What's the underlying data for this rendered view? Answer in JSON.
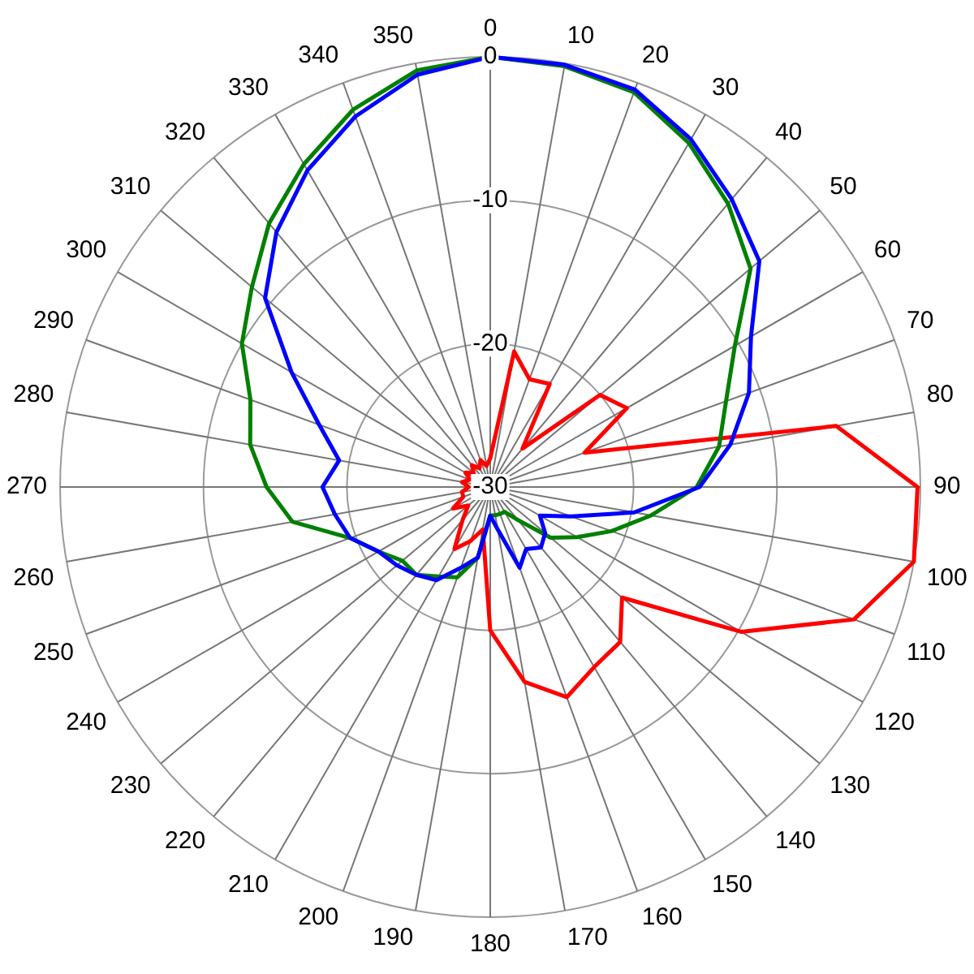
{
  "chart_data": {
    "type": "radar",
    "categories": [
      "0",
      "10",
      "20",
      "30",
      "40",
      "50",
      "60",
      "70",
      "80",
      "90",
      "100",
      "110",
      "120",
      "130",
      "140",
      "150",
      "160",
      "170",
      "180",
      "190",
      "200",
      "210",
      "220",
      "230",
      "240",
      "250",
      "260",
      "270",
      "280",
      "290",
      "300",
      "310",
      "320",
      "330",
      "340",
      "350"
    ],
    "ylim": [
      -30,
      0
    ],
    "yticks": [
      -30,
      -20,
      -10,
      0
    ],
    "grid": true,
    "legend": false,
    "marker": "none",
    "line_style": "solid",
    "series": [
      {
        "color": "#0000ff",
        "values": [
          0,
          -0.1,
          -0.5,
          -2,
          -3.8,
          -5.5,
          -9,
          -10.8,
          -13,
          -15.4,
          -19.8,
          -24,
          -26,
          -25,
          -24.5,
          -25,
          -24,
          -27,
          -28,
          -25,
          -24,
          -22.5,
          -22,
          -21.5,
          -21,
          -19.6,
          -19,
          -18.3,
          -19.3,
          -17.3,
          -14,
          -9.5,
          -6.8,
          -4.5,
          -2.5,
          -0.8
        ]
      },
      {
        "color": "#008000",
        "values": [
          0,
          -0.2,
          -0.7,
          -2.3,
          -4.2,
          -6.3,
          -10.3,
          -12.5,
          -13.8,
          -15.6,
          -18.6,
          -21,
          -23,
          -24.5,
          -27,
          -28,
          -28,
          -28,
          -28,
          -25,
          -23.3,
          -22.8,
          -22,
          -22,
          -21,
          -19.6,
          -16,
          -14.4,
          -13,
          -12.2,
          -10,
          -8.3,
          -6,
          -4,
          -2,
          -0.5
        ]
      },
      {
        "color": "#ff0000",
        "values": [
          -28,
          -20.4,
          -22,
          -21.7,
          -26.5,
          -20,
          -19,
          -23,
          -5.5,
          -0.2,
          0,
          -3,
          -9.8,
          -18,
          -15.9,
          -15.5,
          -14.4,
          -16.2,
          -20,
          -27,
          -26,
          -25,
          -27,
          -28,
          -27,
          -28,
          -28,
          -28.5,
          -28,
          -28.5,
          -28,
          -28.5,
          -28,
          -28.5,
          -28,
          -28.5
        ]
      }
    ]
  }
}
